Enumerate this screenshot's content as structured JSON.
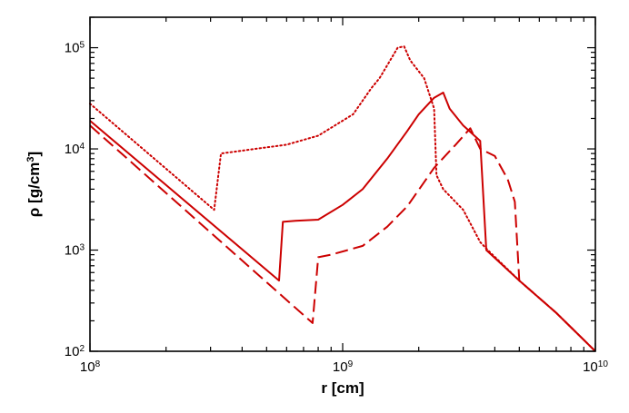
{
  "chart_data": {
    "type": "line",
    "xlabel": "r [cm]",
    "ylabel_main": "ρ [g/cm",
    "ylabel_sup": "3",
    "ylabel_close": "]",
    "xscale": "log",
    "yscale": "log",
    "xlim": [
      100000000.0,
      10000000000.0
    ],
    "ylim": [
      100,
      200000
    ],
    "grid": false,
    "x_ticks": [
      {
        "value": 100000000.0,
        "base": "10",
        "exp": "8"
      },
      {
        "value": 1000000000.0,
        "base": "10",
        "exp": "9"
      },
      {
        "value": 10000000000.0,
        "base": "10",
        "exp": "10"
      }
    ],
    "y_ticks": [
      {
        "value": 100,
        "base": "10",
        "exp": "2"
      },
      {
        "value": 1000,
        "base": "10",
        "exp": "3"
      },
      {
        "value": 10000,
        "base": "10",
        "exp": "4"
      },
      {
        "value": 100000,
        "base": "10",
        "exp": "5"
      }
    ],
    "line_color": "#cc0000",
    "series": [
      {
        "style": "dotted",
        "points": [
          [
            100000000.0,
            28000
          ],
          [
            310000000.0,
            2500
          ],
          [
            330000000.0,
            9000
          ],
          [
            600000000.0,
            11000
          ],
          [
            800000000.0,
            13500
          ],
          [
            1100000000.0,
            22000
          ],
          [
            1300000000.0,
            40000
          ],
          [
            1400000000.0,
            50000
          ],
          [
            1650000000.0,
            100000
          ],
          [
            1750000000.0,
            103000
          ],
          [
            1850000000.0,
            75000
          ],
          [
            2100000000.0,
            50000
          ],
          [
            2300000000.0,
            25000
          ],
          [
            2350000000.0,
            5500
          ],
          [
            2500000000.0,
            4000
          ],
          [
            3000000000.0,
            2500
          ],
          [
            3500000000.0,
            1200
          ],
          [
            3750000000.0,
            1000
          ],
          [
            5000000000.0,
            500
          ],
          [
            7000000000.0,
            240
          ],
          [
            10000000000.0,
            100
          ]
        ]
      },
      {
        "style": "solid",
        "points": [
          [
            100000000.0,
            19000
          ],
          [
            560000000.0,
            500
          ],
          [
            580000000.0,
            1900
          ],
          [
            650000000.0,
            1950
          ],
          [
            800000000.0,
            2000
          ],
          [
            1000000000.0,
            2800
          ],
          [
            1200000000.0,
            4000
          ],
          [
            1500000000.0,
            8000
          ],
          [
            1800000000.0,
            15000
          ],
          [
            2000000000.0,
            22000
          ],
          [
            2300000000.0,
            32000
          ],
          [
            2500000000.0,
            36000
          ],
          [
            2650000000.0,
            25000
          ],
          [
            3000000000.0,
            17000
          ],
          [
            3500000000.0,
            12000
          ],
          [
            3700000000.0,
            1000
          ],
          [
            5000000000.0,
            500
          ],
          [
            7000000000.0,
            240
          ],
          [
            10000000000.0,
            100
          ]
        ]
      },
      {
        "style": "dashed",
        "points": [
          [
            100000000.0,
            17000
          ],
          [
            760000000.0,
            190
          ],
          [
            800000000.0,
            850
          ],
          [
            900000000.0,
            900
          ],
          [
            1200000000.0,
            1100
          ],
          [
            1500000000.0,
            1700
          ],
          [
            1800000000.0,
            2700
          ],
          [
            2300000000.0,
            6500
          ],
          [
            2800000000.0,
            11000
          ],
          [
            3200000000.0,
            16000
          ],
          [
            3500000000.0,
            10000
          ],
          [
            4000000000.0,
            8500
          ],
          [
            4500000000.0,
            5000
          ],
          [
            4800000000.0,
            3000
          ],
          [
            5000000000.0,
            500
          ],
          [
            7000000000.0,
            240
          ],
          [
            10000000000.0,
            100
          ]
        ]
      }
    ]
  }
}
